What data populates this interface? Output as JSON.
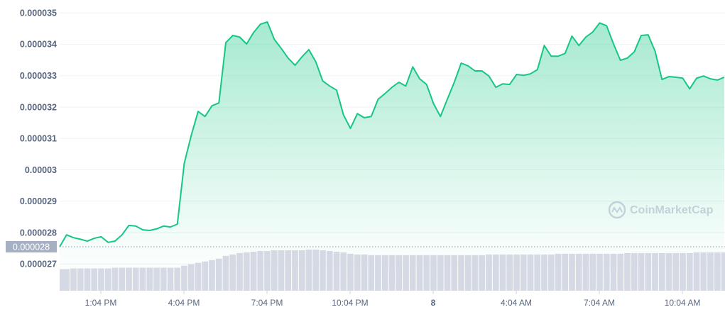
{
  "chart_data": {
    "type": "area",
    "watermark": "CoinMarketCap",
    "x": [
      11.58,
      11.83,
      12.08,
      12.33,
      12.58,
      12.83,
      13.08,
      13.33,
      13.58,
      13.83,
      14.08,
      14.33,
      14.58,
      14.83,
      15.08,
      15.33,
      15.58,
      15.83,
      16.08,
      16.33,
      16.58,
      16.83,
      17.08,
      17.33,
      17.58,
      17.83,
      18.08,
      18.33,
      18.58,
      18.83,
      19.08,
      19.33,
      19.58,
      19.83,
      20.08,
      20.33,
      20.58,
      20.83,
      21.08,
      21.33,
      21.58,
      21.83,
      22.08,
      22.33,
      22.58,
      22.83,
      23.08,
      23.33,
      23.58,
      23.83,
      24.08,
      24.33,
      24.58,
      24.83,
      25.08,
      25.33,
      25.58,
      25.83,
      26.08,
      26.33,
      26.58,
      26.83,
      27.08,
      27.33,
      27.58,
      27.83,
      28.08,
      28.33,
      28.58,
      28.83,
      29.08,
      29.33,
      29.58,
      29.83,
      30.08,
      30.33,
      30.58,
      30.83,
      31.08,
      31.33,
      31.58,
      31.83,
      32.08,
      32.33,
      32.58,
      32.83,
      33.08,
      33.33,
      33.58,
      33.83,
      34.08,
      34.33,
      34.58,
      34.83,
      35.08,
      35.33,
      35.58
    ],
    "series": [
      {
        "color": "#16c784",
        "values": [
          2.755e-05,
          2.793e-05,
          2.784e-05,
          2.779e-05,
          2.773e-05,
          2.782e-05,
          2.787e-05,
          2.769e-05,
          2.773e-05,
          2.793e-05,
          2.823e-05,
          2.821e-05,
          2.809e-05,
          2.807e-05,
          2.812e-05,
          2.821e-05,
          2.818e-05,
          2.827e-05,
          3.021e-05,
          3.109e-05,
          3.186e-05,
          3.17e-05,
          3.204e-05,
          3.213e-05,
          3.405e-05,
          3.428e-05,
          3.423e-05,
          3.401e-05,
          3.437e-05,
          3.464e-05,
          3.471e-05,
          3.416e-05,
          3.387e-05,
          3.356e-05,
          3.333e-05,
          3.36e-05,
          3.383e-05,
          3.344e-05,
          3.283e-05,
          3.267e-05,
          3.254e-05,
          3.175e-05,
          3.132e-05,
          3.179e-05,
          3.166e-05,
          3.17e-05,
          3.225e-05,
          3.243e-05,
          3.263e-05,
          3.279e-05,
          3.267e-05,
          3.328e-05,
          3.29e-05,
          3.272e-05,
          3.211e-05,
          3.17e-05,
          3.225e-05,
          3.279e-05,
          3.34e-05,
          3.331e-05,
          3.315e-05,
          3.315e-05,
          3.299e-05,
          3.263e-05,
          3.274e-05,
          3.272e-05,
          3.304e-05,
          3.301e-05,
          3.306e-05,
          3.319e-05,
          3.396e-05,
          3.362e-05,
          3.362e-05,
          3.371e-05,
          3.426e-05,
          3.396e-05,
          3.423e-05,
          3.439e-05,
          3.468e-05,
          3.459e-05,
          3.401e-05,
          3.349e-05,
          3.356e-05,
          3.376e-05,
          3.428e-05,
          3.43e-05,
          3.378e-05,
          3.288e-05,
          3.297e-05,
          3.295e-05,
          3.292e-05,
          3.258e-05,
          3.292e-05,
          3.299e-05,
          3.29e-05,
          3.286e-05,
          3.295e-05
        ]
      }
    ],
    "volume": {
      "color": "#d5d9e4",
      "values": [
        31,
        31,
        32,
        32,
        32,
        32,
        32,
        32,
        33,
        33,
        33,
        33,
        33,
        33,
        33,
        33,
        33,
        33,
        36,
        38,
        40,
        42,
        44,
        46,
        50,
        52,
        54,
        55,
        56,
        57,
        57,
        58,
        58,
        58,
        58,
        58,
        59,
        59,
        58,
        57,
        56,
        55,
        53,
        52,
        52,
        51,
        51,
        51,
        51,
        51,
        51,
        51,
        51,
        51,
        51,
        51,
        51,
        51,
        51,
        51,
        51,
        51,
        52,
        52,
        52,
        52,
        52,
        52,
        52,
        52,
        52,
        52,
        53,
        53,
        53,
        53,
        53,
        53,
        53,
        53,
        53,
        53,
        54,
        54,
        54,
        54,
        54,
        54,
        54,
        54,
        54,
        54,
        55,
        55,
        55,
        55,
        55
      ]
    },
    "reference": {
      "value": 2.755e-05,
      "label": "0.000028"
    },
    "xlim": [
      11.58,
      35.58
    ],
    "xticks": [
      {
        "value": 13.067,
        "label": "1:04 PM"
      },
      {
        "value": 16.067,
        "label": "4:04 PM"
      },
      {
        "value": 19.067,
        "label": "7:04 PM"
      },
      {
        "value": 22.067,
        "label": "10:04 PM"
      },
      {
        "value": 25.067,
        "label": "8"
      },
      {
        "value": 28.067,
        "label": "4:04 AM"
      },
      {
        "value": 31.067,
        "label": "7:04 AM"
      },
      {
        "value": 34.067,
        "label": "10:04 AM"
      }
    ],
    "ylim": [
      2.615e-05,
      3.541e-05
    ],
    "yticks": [
      2.7e-05,
      2.8e-05,
      2.9e-05,
      3e-05,
      3.1e-05,
      3.2e-05,
      3.3e-05,
      3.4e-05,
      3.5e-05
    ],
    "grid": true
  }
}
